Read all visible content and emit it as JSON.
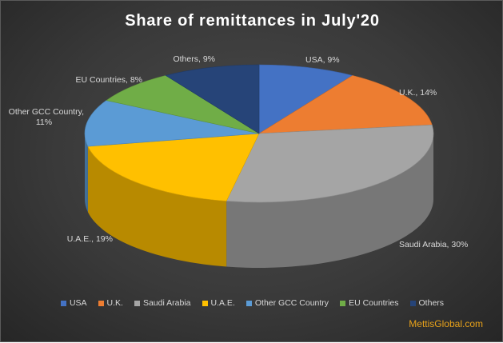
{
  "chart_data": {
    "type": "pie",
    "title": "Share of remittances in July'20",
    "categories": [
      "USA",
      "U.K.",
      "Saudi Arabia",
      "U.A.E.",
      "Other GCC Country",
      "EU Countries",
      "Others"
    ],
    "values": [
      9,
      14,
      30,
      19,
      11,
      8,
      9
    ],
    "unit": "%",
    "data_labels": [
      "USA, 9%",
      "U.K., 14%",
      "Saudi Arabia, 30%",
      "U.A.E., 19%",
      "Other GCC Country,\n11%",
      "EU Countries, 8%",
      "Others, 9%"
    ],
    "colors": [
      "#4472c4",
      "#ed7d31",
      "#a5a5a5",
      "#ffc000",
      "#5b9bd5",
      "#70ad47",
      "#264478"
    ],
    "legend_position": "bottom",
    "style": "3d-pie"
  },
  "watermark": "MettisGlobal.com"
}
